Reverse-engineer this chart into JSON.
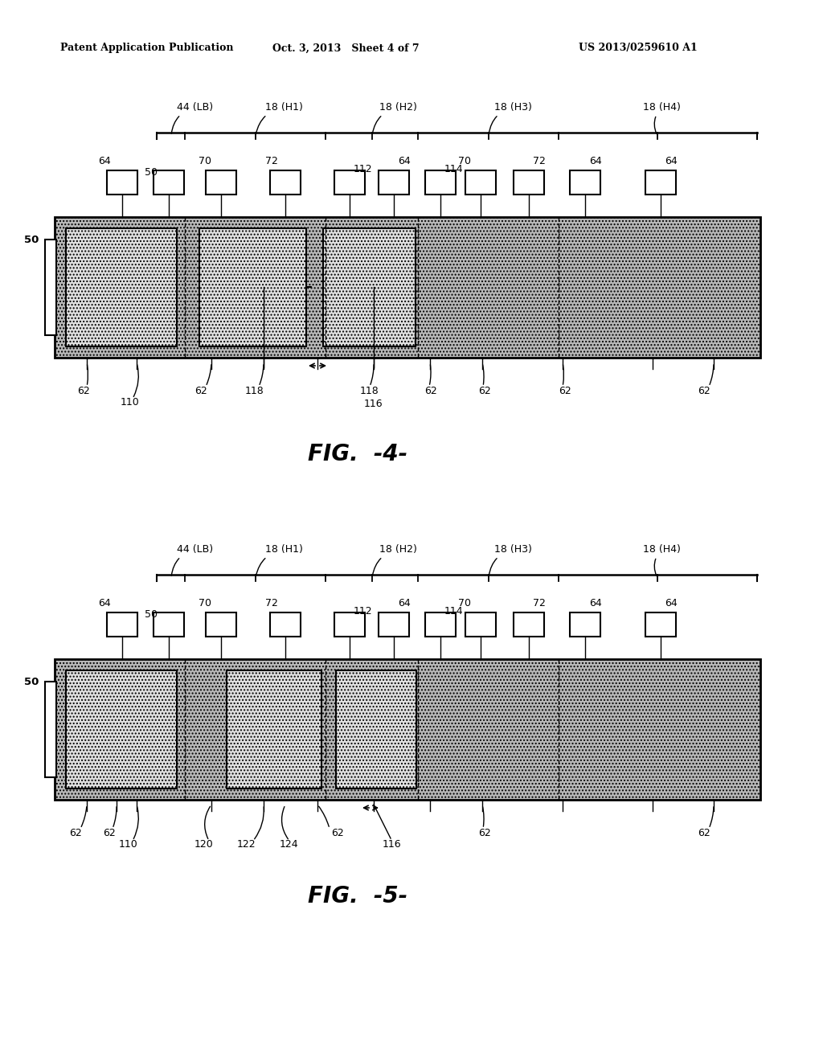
{
  "background_color": "#ffffff",
  "header_left": "Patent Application Publication",
  "header_mid": "Oct. 3, 2013   Sheet 4 of 7",
  "header_right": "US 2013/0259610 A1",
  "fig4_label": "FIG.  -4-",
  "fig5_label": "FIG.  -5-",
  "text_color": "#000000",
  "line_color": "#000000",
  "dot_fill": "#d0d0d0",
  "dark_fill": "#888888"
}
